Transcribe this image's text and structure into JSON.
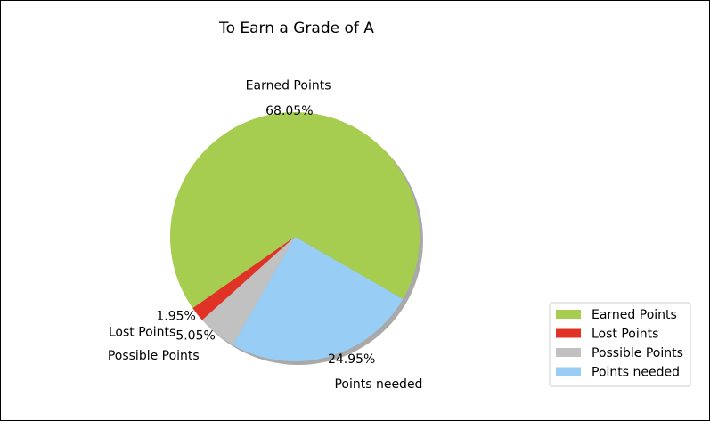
{
  "chart_data": {
    "type": "pie",
    "title": "To Earn a Grade of A",
    "slices": [
      {
        "label": "Earned Points",
        "value": 68.05,
        "pct_label": "68.05%",
        "color": "#a6cd4f"
      },
      {
        "label": "Lost Points",
        "value": 1.95,
        "pct_label": "1.95%",
        "color": "#e03325"
      },
      {
        "label": "Possible Points",
        "value": 5.05,
        "pct_label": "5.05%",
        "color": "#c1c1c1"
      },
      {
        "label": "Points needed",
        "value": 24.95,
        "pct_label": "24.95%",
        "color": "#98cdf5"
      }
    ],
    "shadow": true,
    "legend": {
      "position": "lower-right",
      "entries": [
        "Earned Points",
        "Lost Points",
        "Possible Points",
        "Points needed"
      ]
    }
  }
}
